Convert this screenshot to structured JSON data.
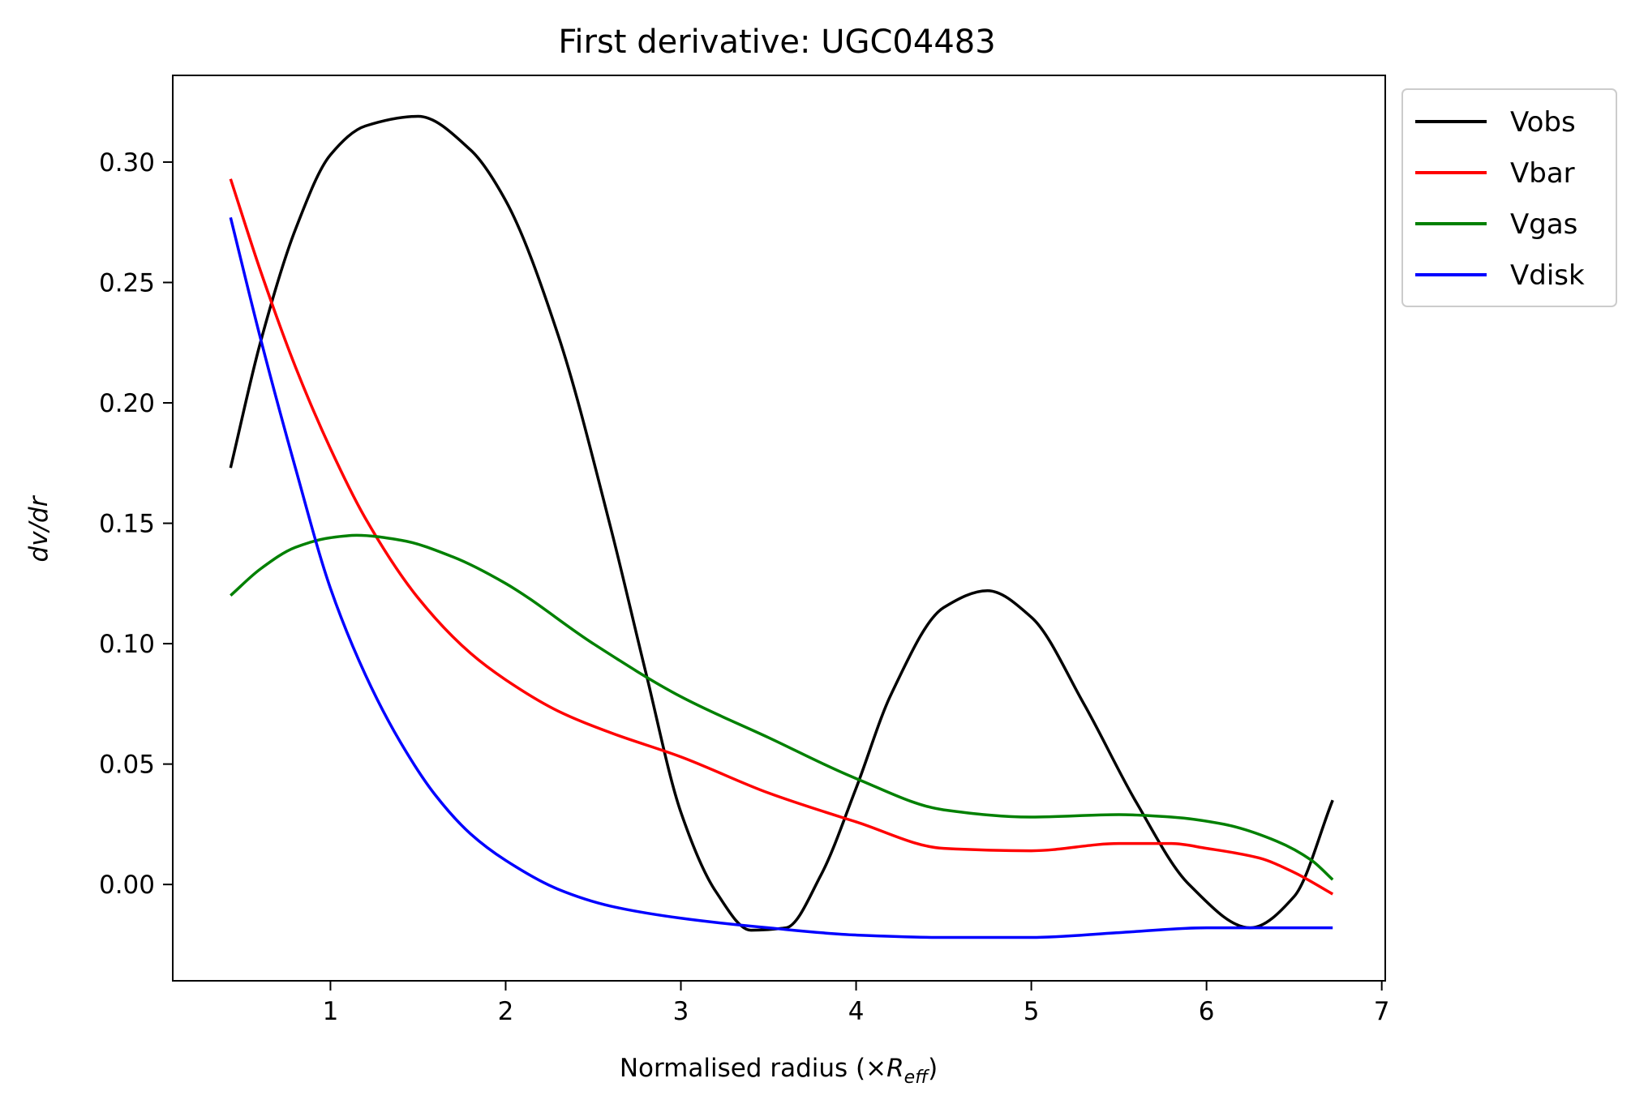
{
  "chart_data": {
    "type": "line",
    "title": "First derivative: UGC04483",
    "xlabel": {
      "text": "Normalised radius (×",
      "math_base": "R",
      "math_sub": "eff",
      "close": ")"
    },
    "ylabel": "dv/dr",
    "xlim": [
      0.1,
      7.02
    ],
    "ylim": [
      -0.04,
      0.336
    ],
    "xticks": [
      1,
      2,
      3,
      4,
      5,
      6,
      7
    ],
    "xtick_labels": [
      "1",
      "2",
      "3",
      "4",
      "5",
      "6",
      "7"
    ],
    "yticks": [
      0.0,
      0.05,
      0.1,
      0.15,
      0.2,
      0.25,
      0.3
    ],
    "ytick_labels": [
      "0.00",
      "0.05",
      "0.10",
      "0.15",
      "0.20",
      "0.25",
      "0.30"
    ],
    "grid": false,
    "legend_position": "outside-top-right",
    "series": [
      {
        "name": "Vobs",
        "color": "#000000",
        "x": [
          0.43,
          0.6,
          0.8,
          1.0,
          1.2,
          1.5,
          1.8,
          2.0,
          2.3,
          2.6,
          2.8,
          3.0,
          3.2,
          3.4,
          3.6,
          3.8,
          4.0,
          4.2,
          4.5,
          4.75,
          5.0,
          5.3,
          5.6,
          5.9,
          6.25,
          6.5,
          6.72
        ],
        "y": [
          0.173,
          0.225,
          0.272,
          0.303,
          0.315,
          0.319,
          0.305,
          0.284,
          0.228,
          0.148,
          0.088,
          0.03,
          -0.003,
          -0.019,
          -0.018,
          0.004,
          0.04,
          0.079,
          0.115,
          0.122,
          0.111,
          0.075,
          0.034,
          0.0,
          -0.018,
          -0.005,
          0.035
        ]
      },
      {
        "name": "Vbar",
        "color": "#ff0000",
        "x": [
          0.43,
          0.6,
          0.8,
          1.0,
          1.2,
          1.5,
          1.8,
          2.0,
          2.3,
          2.6,
          3.0,
          3.5,
          4.0,
          4.5,
          5.0,
          5.5,
          5.8,
          6.0,
          6.3,
          6.5,
          6.72
        ],
        "y": [
          0.293,
          0.255,
          0.215,
          0.181,
          0.152,
          0.119,
          0.096,
          0.085,
          0.072,
          0.063,
          0.053,
          0.038,
          0.026,
          0.015,
          0.014,
          0.017,
          0.017,
          0.015,
          0.011,
          0.005,
          -0.004
        ]
      },
      {
        "name": "Vgas",
        "color": "#008000",
        "x": [
          0.43,
          0.6,
          0.8,
          1.0,
          1.15,
          1.4,
          1.7,
          2.0,
          2.5,
          3.0,
          3.5,
          4.0,
          4.5,
          5.0,
          5.5,
          5.8,
          6.1,
          6.4,
          6.6,
          6.72
        ],
        "y": [
          0.12,
          0.131,
          0.14,
          0.144,
          0.145,
          0.143,
          0.136,
          0.125,
          0.1,
          0.078,
          0.061,
          0.044,
          0.031,
          0.028,
          0.029,
          0.028,
          0.025,
          0.018,
          0.01,
          0.002
        ]
      },
      {
        "name": "Vdisk",
        "color": "#0000ff",
        "x": [
          0.43,
          0.6,
          0.8,
          1.0,
          1.2,
          1.4,
          1.6,
          1.8,
          2.0,
          2.3,
          2.6,
          3.0,
          3.5,
          4.0,
          4.5,
          5.0,
          5.5,
          6.0,
          6.5,
          6.72
        ],
        "y": [
          0.277,
          0.227,
          0.173,
          0.123,
          0.087,
          0.059,
          0.037,
          0.021,
          0.01,
          -0.002,
          -0.009,
          -0.014,
          -0.018,
          -0.021,
          -0.022,
          -0.022,
          -0.02,
          -0.018,
          -0.018,
          -0.018
        ]
      }
    ]
  }
}
